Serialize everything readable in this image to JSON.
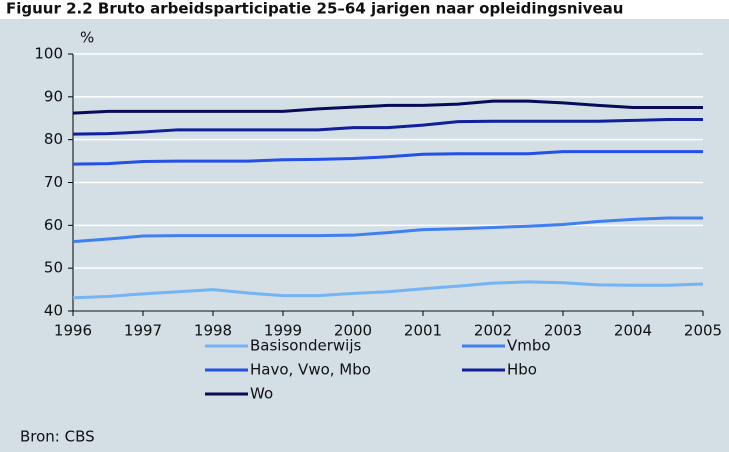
{
  "chart_data": {
    "type": "line",
    "title": "Figuur 2.2 Bruto arbeidsparticipatie 25–64 jarigen naar opleidingsniveau",
    "y_label": "%",
    "source": "Bron: CBS",
    "x": [
      1996,
      1996.5,
      1997,
      1997.5,
      1998,
      1998.5,
      1999,
      1999.5,
      2000,
      2000.5,
      2001,
      2001.5,
      2002,
      2002.5,
      2003,
      2003.5,
      2004,
      2004.5,
      2005
    ],
    "xlim": [
      1996,
      2005
    ],
    "xticks": [
      1996,
      1997,
      1998,
      1999,
      2000,
      2001,
      2002,
      2003,
      2004,
      2005
    ],
    "ylim": [
      40,
      100
    ],
    "yticks": [
      40,
      50,
      60,
      70,
      80,
      90,
      100
    ],
    "grid": true,
    "series": [
      {
        "name": "Basisonderwijs",
        "color": "#74b4f4",
        "values": [
          43.1,
          43.4,
          44.0,
          44.5,
          45.0,
          44.2,
          43.6,
          43.6,
          44.1,
          44.5,
          45.2,
          45.8,
          46.5,
          46.8,
          46.6,
          46.1,
          46.0,
          46.0,
          46.3
        ]
      },
      {
        "name": "Vmbo",
        "color": "#3f7ff0",
        "values": [
          56.2,
          56.8,
          57.5,
          57.6,
          57.6,
          57.6,
          57.6,
          57.6,
          57.7,
          58.3,
          59.0,
          59.2,
          59.5,
          59.8,
          60.2,
          60.9,
          61.4,
          61.7,
          61.7
        ]
      },
      {
        "name": "Havo, Vwo, Mbo",
        "color": "#2450e6",
        "values": [
          74.3,
          74.4,
          74.9,
          75.0,
          75.0,
          75.0,
          75.3,
          75.4,
          75.6,
          76.0,
          76.6,
          76.7,
          76.7,
          76.7,
          77.2,
          77.2,
          77.2,
          77.2,
          77.2
        ]
      },
      {
        "name": "Hbo",
        "color": "#101f9c",
        "values": [
          81.3,
          81.4,
          81.8,
          82.3,
          82.3,
          82.3,
          82.3,
          82.3,
          82.8,
          82.8,
          83.4,
          84.2,
          84.3,
          84.3,
          84.3,
          84.3,
          84.5,
          84.7,
          84.7
        ]
      },
      {
        "name": "Wo",
        "color": "#0a0a58",
        "values": [
          86.2,
          86.6,
          86.6,
          86.6,
          86.6,
          86.6,
          86.6,
          87.2,
          87.6,
          88.0,
          88.0,
          88.3,
          89.0,
          89.0,
          88.6,
          88.0,
          87.5,
          87.5,
          87.5
        ]
      }
    ]
  }
}
